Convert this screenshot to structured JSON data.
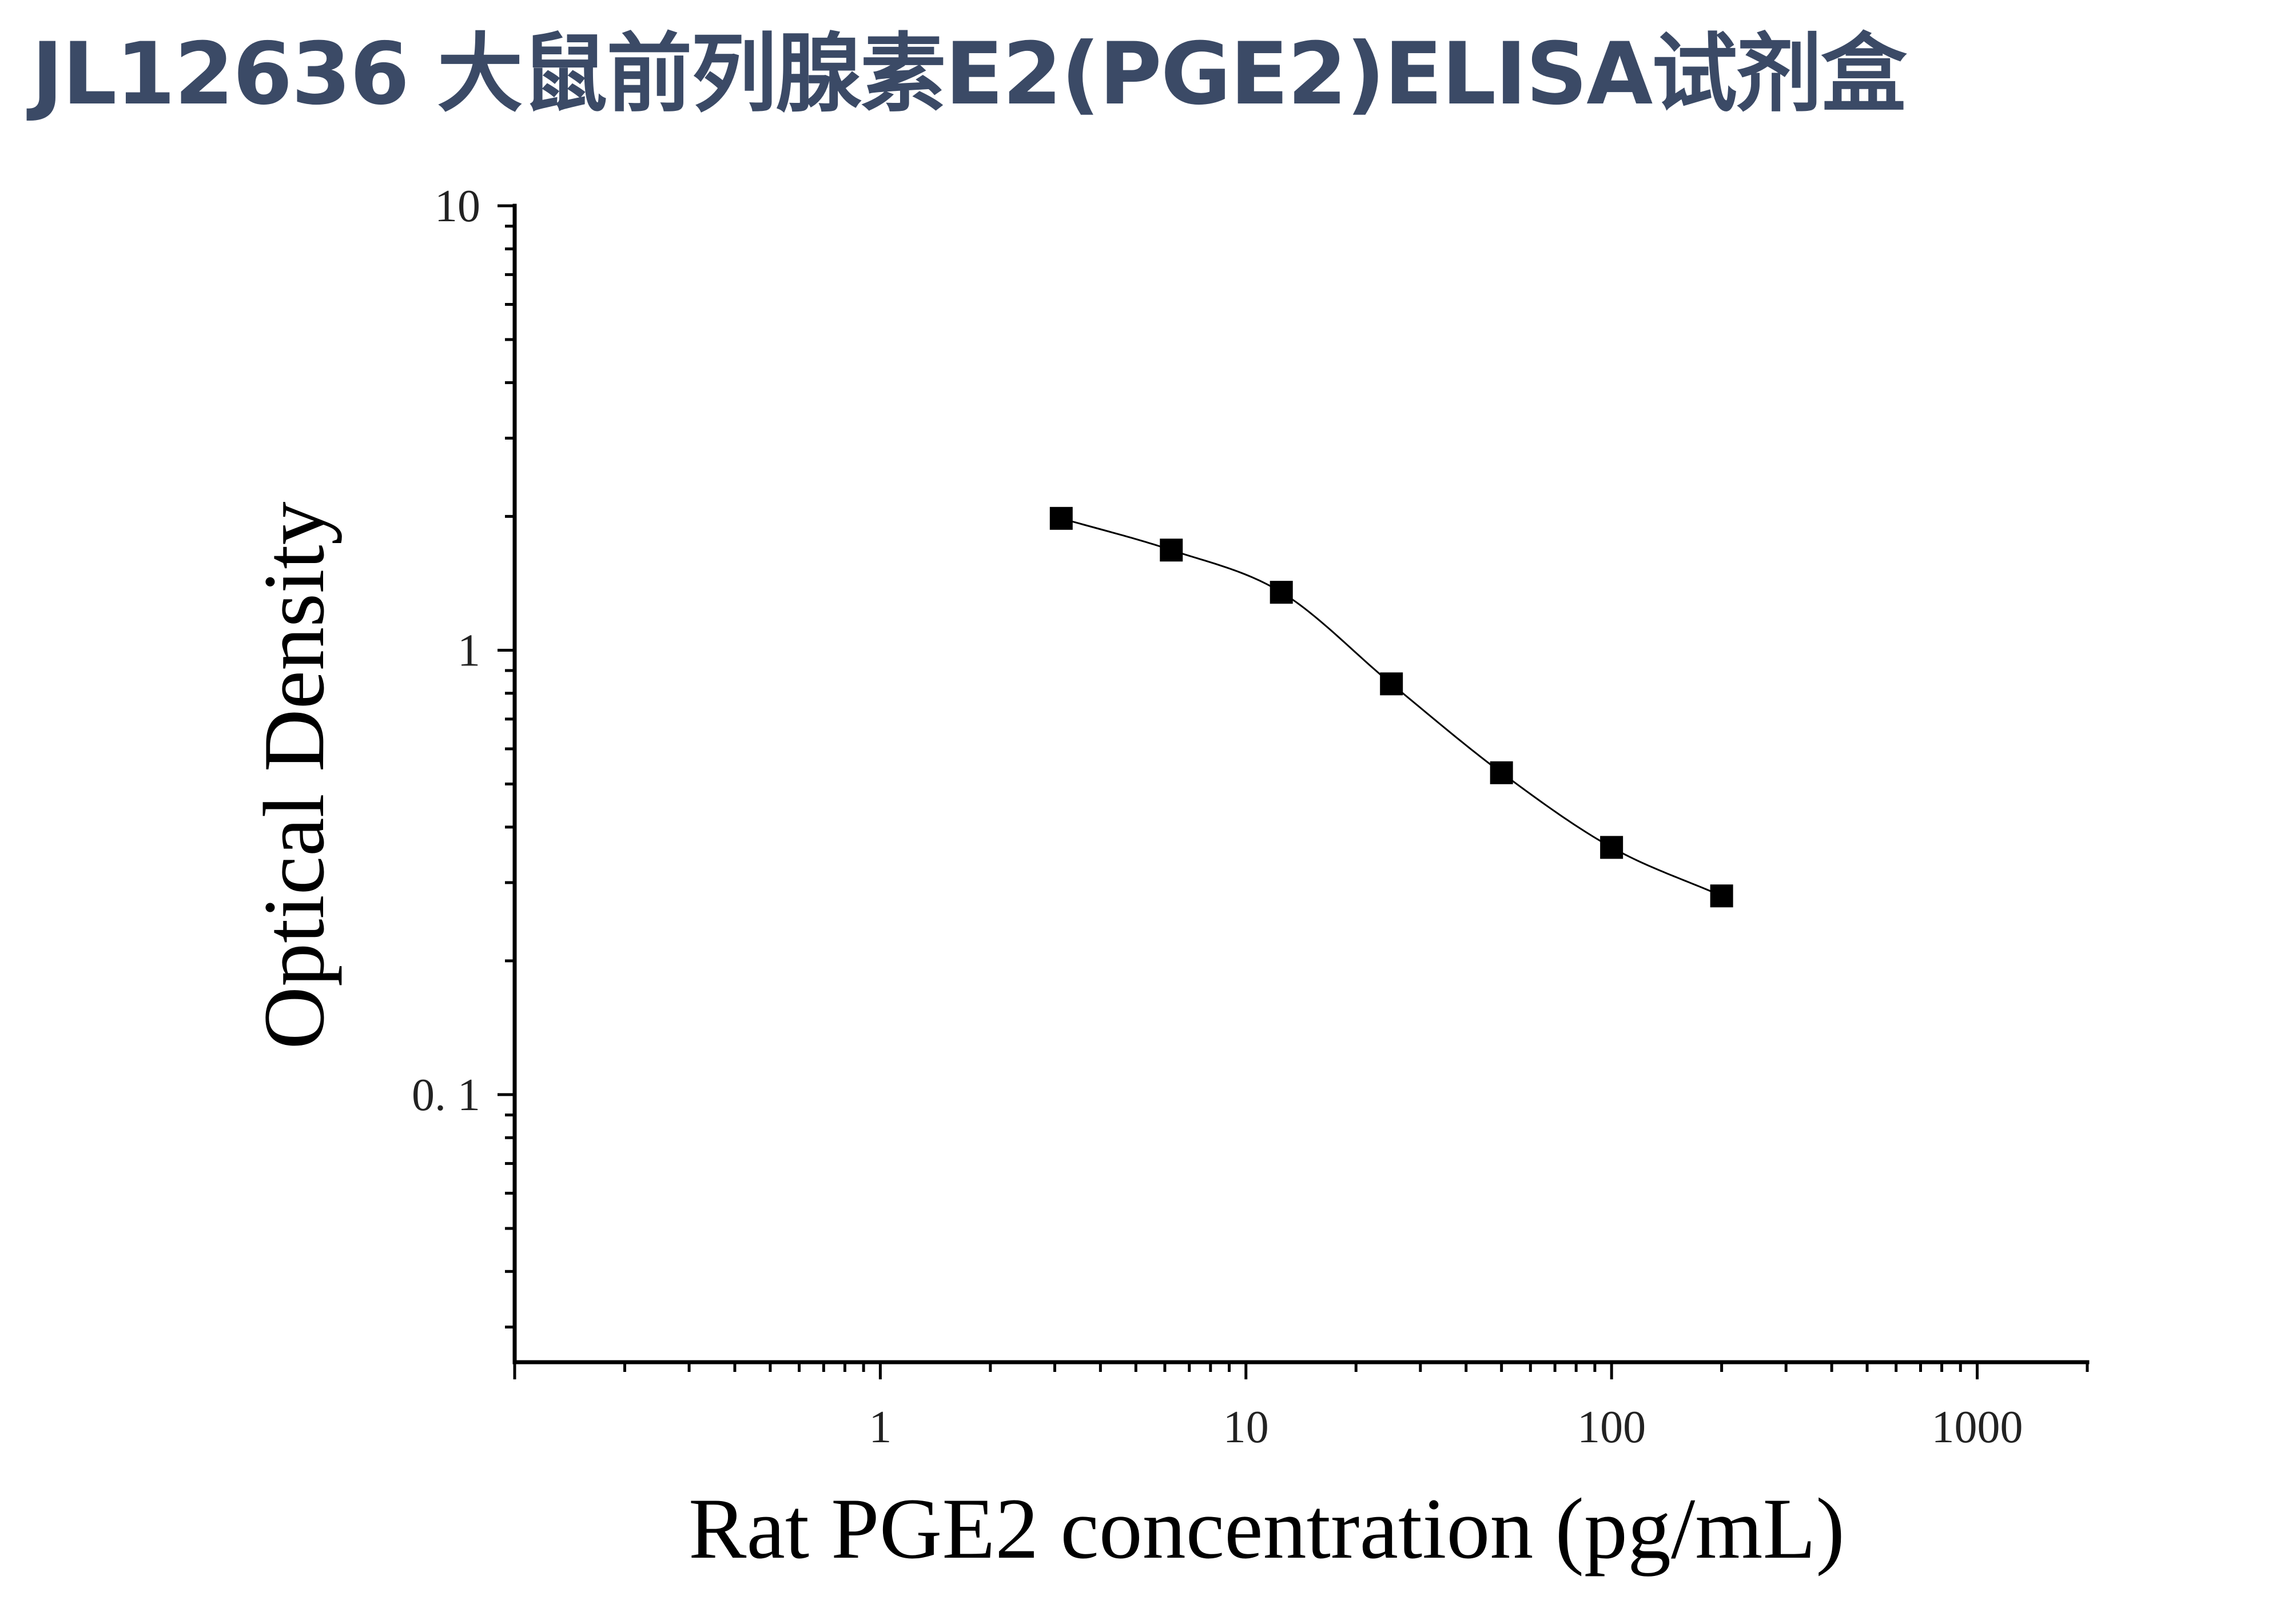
{
  "title": "JL12636 大鼠前列腺素E2(PGE2)ELISA试剂盒",
  "colors": {
    "title": "#3b4a66",
    "axis": "#000000",
    "marker": "#000000",
    "curve": "#000000"
  },
  "chart_data": {
    "type": "scatter",
    "title": "JL12636 大鼠前列腺素E2(PGE2)ELISA试剂盒",
    "xlabel": "Rat PGE2 concentration (pg/mL)",
    "ylabel": "Optical Density",
    "xscale": "log",
    "yscale": "log",
    "xlim": [
      0.1,
      2000
    ],
    "ylim": [
      0.025,
      10
    ],
    "xticks": [
      1,
      10,
      100,
      1000
    ],
    "xtick_labels": [
      "1",
      "10",
      "100",
      "1000"
    ],
    "yticks": [
      0.1,
      1,
      10
    ],
    "ytick_labels": [
      "0. 1",
      "1",
      "10"
    ],
    "grid": false,
    "legend": "none",
    "marker": "square",
    "series": [
      {
        "x": [
          3.125,
          6.25,
          12.5,
          25,
          50,
          100,
          200
        ],
        "y": [
          1.98,
          1.68,
          1.35,
          0.84,
          0.53,
          0.36,
          0.28
        ]
      }
    ],
    "fit_curve": "smooth sigmoidal fit through points"
  }
}
